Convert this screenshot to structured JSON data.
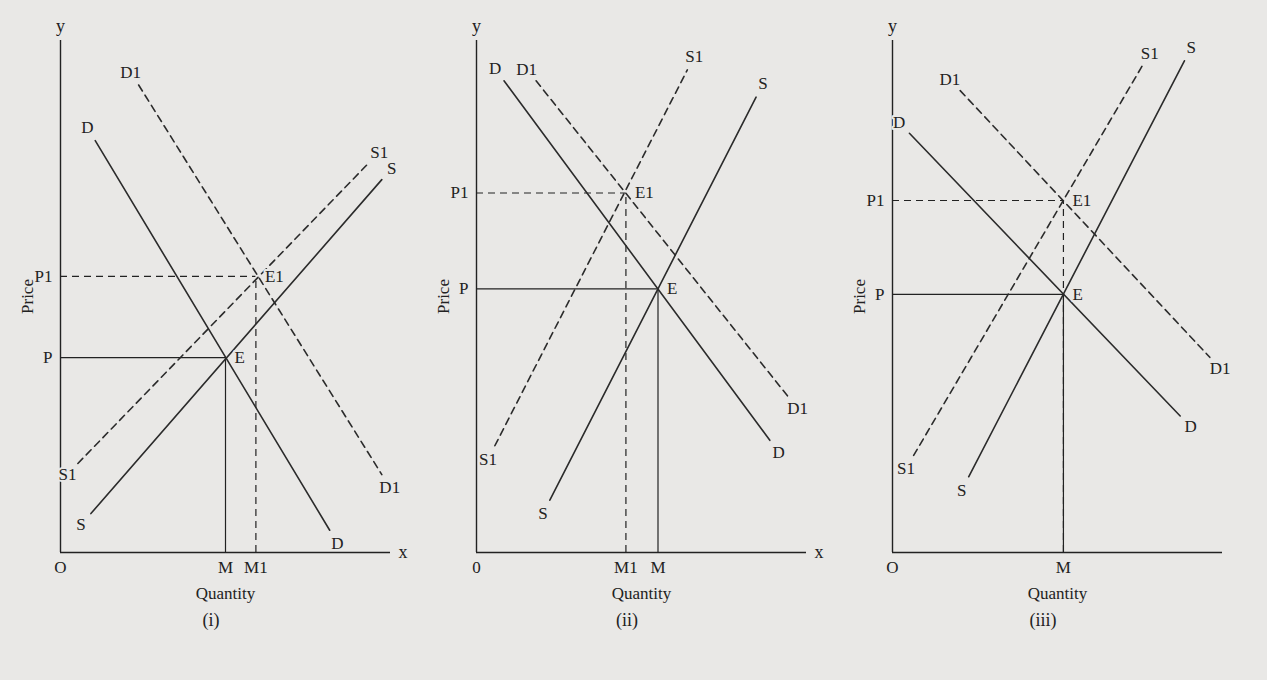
{
  "chart_data": [
    {
      "type": "line",
      "title": "(i)",
      "x_label": "Quantity",
      "y_label": "Price",
      "xlim": [
        0,
        38
      ],
      "ylim": [
        0,
        46
      ],
      "xticks": [
        {
          "value": 0,
          "label": "O"
        },
        {
          "value": 19,
          "label": "M"
        },
        {
          "value": 22.5,
          "label": "M1"
        }
      ],
      "yticks": [
        {
          "value": 17.5,
          "label": "P"
        },
        {
          "value": 24.8,
          "label": "P1"
        }
      ],
      "series": [
        {
          "name": "D",
          "color": "#2b2b2b",
          "line_style": "solid",
          "x": [
            4,
            31
          ],
          "values": [
            37,
            2
          ]
        },
        {
          "name": "S",
          "color": "#2b2b2b",
          "line_style": "solid",
          "x": [
            3.5,
            37
          ],
          "values": [
            3.5,
            33.5
          ]
        },
        {
          "name": "D1",
          "color": "#2b2b2b",
          "line_style": "dashed",
          "x": [
            9,
            37
          ],
          "values": [
            42,
            7
          ]
        },
        {
          "name": "S1",
          "color": "#2b2b2b",
          "line_style": "dashed",
          "x": [
            2,
            35.5
          ],
          "values": [
            8,
            35
          ]
        }
      ],
      "points": [
        {
          "label": "E",
          "x": 19,
          "y": 17.5,
          "line_style": "solid"
        },
        {
          "label": "E1",
          "x": 22.5,
          "y": 24.8,
          "line_style": "dashed"
        }
      ],
      "annotations": [
        {
          "text": "y",
          "x": 0,
          "y": 46
        },
        {
          "text": "x",
          "x": 38,
          "y": 0
        }
      ]
    },
    {
      "type": "line",
      "title": "(ii)",
      "x_label": "Quantity",
      "y_label": "Price",
      "xlim": [
        0,
        36
      ],
      "ylim": [
        0,
        47
      ],
      "xticks": [
        {
          "value": 0,
          "label": "0"
        },
        {
          "value": 16.3,
          "label": "M1"
        },
        {
          "value": 19.8,
          "label": "M"
        }
      ],
      "yticks": [
        {
          "value": 24.2,
          "label": "P"
        },
        {
          "value": 33,
          "label": "P1"
        }
      ],
      "series": [
        {
          "name": "D",
          "color": "#2b2b2b",
          "line_style": "solid",
          "x": [
            3,
            32
          ],
          "values": [
            43.3,
            10.3
          ]
        },
        {
          "name": "S",
          "color": "#2b2b2b",
          "line_style": "solid",
          "x": [
            8,
            30.5
          ],
          "values": [
            4.8,
            41.8
          ]
        },
        {
          "name": "D1",
          "color": "#2b2b2b",
          "line_style": "dashed",
          "x": [
            6.5,
            34
          ],
          "values": [
            43.3,
            14.3
          ]
        },
        {
          "name": "S1",
          "color": "#2b2b2b",
          "line_style": "dashed",
          "x": [
            2,
            23
          ],
          "values": [
            9.8,
            44.3
          ]
        }
      ],
      "points": [
        {
          "label": "E",
          "x": 19.8,
          "y": 24.2,
          "line_style": "solid"
        },
        {
          "label": "E1",
          "x": 16.3,
          "y": 33,
          "line_style": "dashed"
        }
      ],
      "annotations": [
        {
          "text": "y",
          "x": 0,
          "y": 47
        },
        {
          "text": "x",
          "x": 36,
          "y": 0
        }
      ]
    },
    {
      "type": "line",
      "title": "(iii)",
      "x_label": "Quantity",
      "y_label": "Price",
      "xlim": [
        0,
        39
      ],
      "ylim": [
        0,
        48
      ],
      "xticks": [
        {
          "value": 0,
          "label": "O"
        },
        {
          "value": 20.2,
          "label": "M"
        }
      ],
      "yticks": [
        {
          "value": 24.2,
          "label": "P"
        },
        {
          "value": 33,
          "label": "P1"
        }
      ],
      "series": [
        {
          "name": "D",
          "color": "#2b2b2b",
          "line_style": "solid",
          "x": [
            2,
            34
          ],
          "values": [
            39.3,
            12.8
          ]
        },
        {
          "name": "S",
          "color": "#2b2b2b",
          "line_style": "solid",
          "x": [
            9,
            34.5
          ],
          "values": [
            7.1,
            46.1
          ]
        },
        {
          "name": "D1",
          "color": "#2b2b2b",
          "line_style": "dashed",
          "x": [
            8,
            37.5
          ],
          "values": [
            43.3,
            18.3
          ]
        },
        {
          "name": "S1",
          "color": "#2b2b2b",
          "line_style": "dashed",
          "x": [
            2.5,
            29.5
          ],
          "values": [
            9.1,
            45.6
          ]
        }
      ],
      "points": [
        {
          "label": "E",
          "x": 20.2,
          "y": 24.2,
          "line_style": "solid"
        },
        {
          "label": "E1",
          "x": 20.2,
          "y": 33,
          "line_style": "dashed"
        }
      ],
      "annotations": [
        {
          "text": "y",
          "x": 0,
          "y": 48
        }
      ]
    }
  ]
}
